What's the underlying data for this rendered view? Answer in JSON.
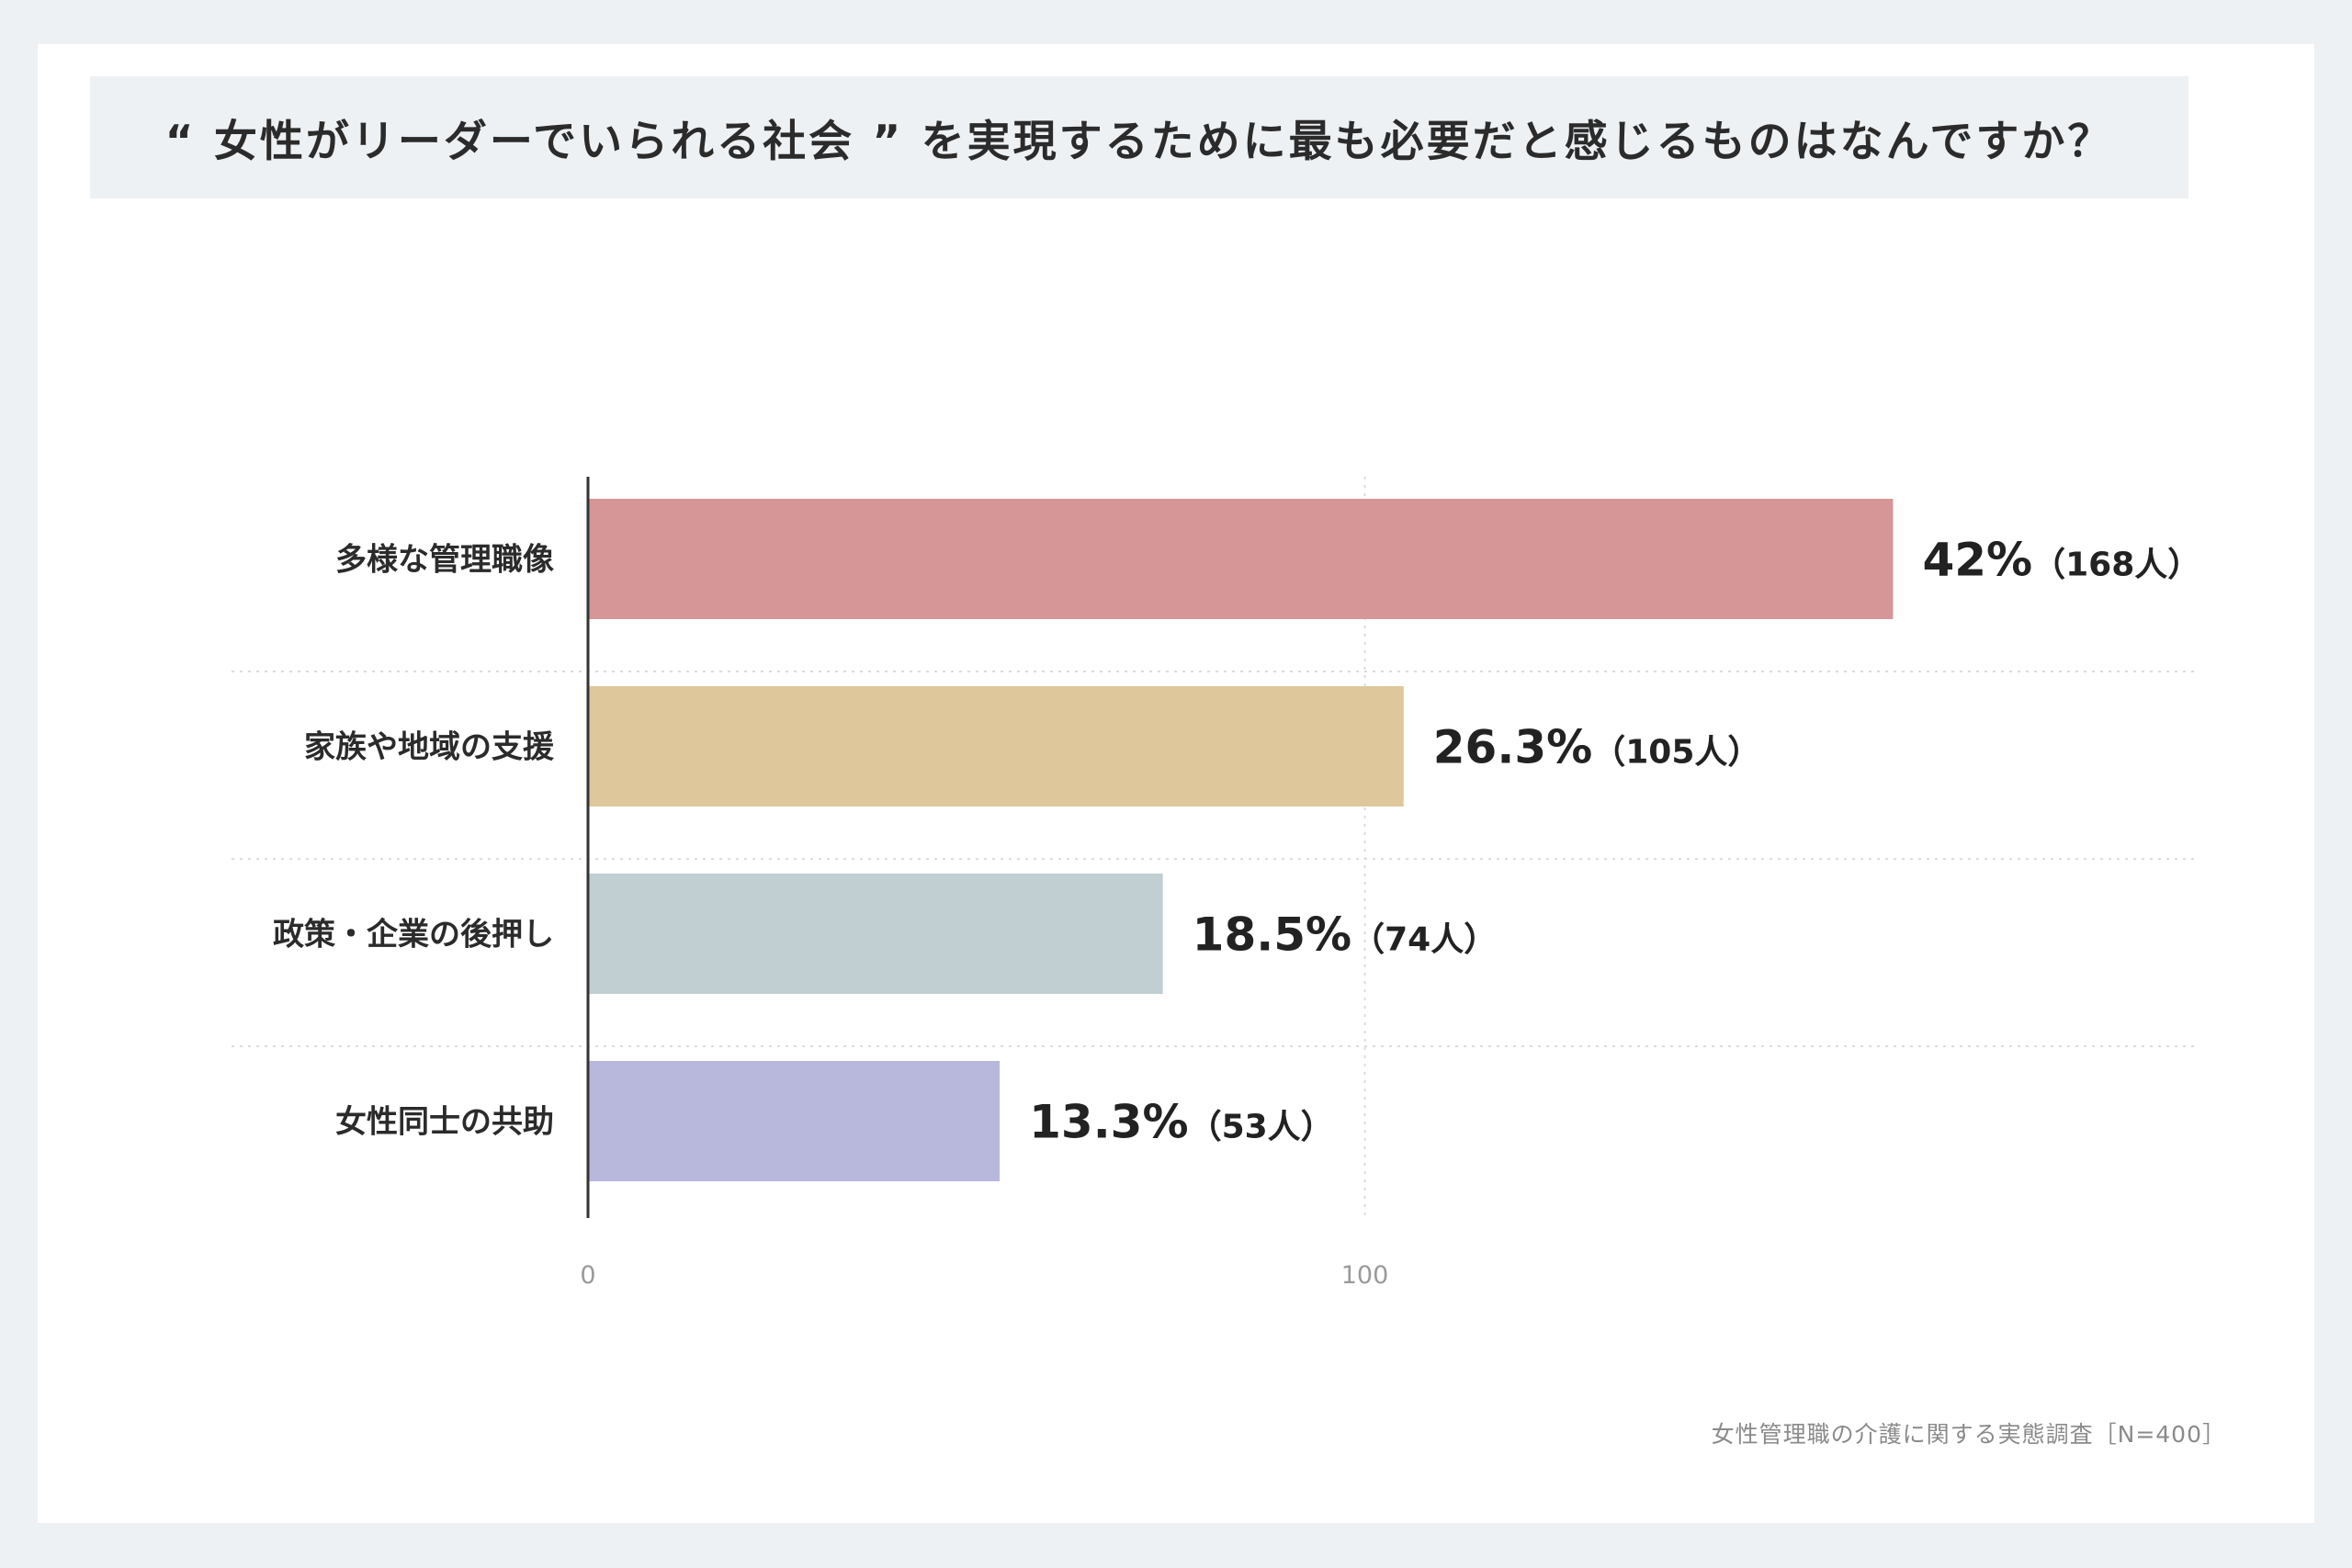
{
  "title": "“ 女性がリーダーでいられる社会 ” を実現するために最も必要だと感じるものはなんですか？",
  "source": "女性管理職の介護に関する実態調査［N=400］",
  "colors": {
    "background": "#edf1f4",
    "card": "#ffffff",
    "title_bar": "#edf1f4",
    "grid": "#d8dde1",
    "axis": "#333333"
  },
  "chart_data": {
    "type": "bar",
    "orientation": "horizontal",
    "categories": [
      "多様な管理職像",
      "家族や地域の支援",
      "政策・企業の後押し",
      "女性同士の共助"
    ],
    "values": [
      168,
      105,
      74,
      53
    ],
    "percent_labels": [
      "42%",
      "26.3%",
      "18.5%",
      "13.3%"
    ],
    "count_labels": [
      "（168人）",
      "（105人）",
      "（74人）",
      "（53人）"
    ],
    "bar_colors": [
      "#d69597",
      "#dec79a",
      "#c1cfd3",
      "#b8b8dd"
    ],
    "xlim": [
      0,
      210
    ],
    "ticks": [
      0,
      100
    ],
    "tick_labels": [
      "0",
      "100"
    ],
    "grid": true
  }
}
